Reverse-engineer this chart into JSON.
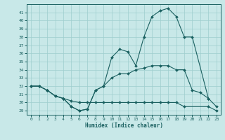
{
  "xlabel": "Humidex (Indice chaleur)",
  "bg_color": "#c8e8e8",
  "line_color": "#1a6060",
  "grid_color": "#9ecece",
  "xlim": [
    -0.5,
    23.5
  ],
  "ylim": [
    28.5,
    42.0
  ],
  "yticks": [
    29,
    30,
    31,
    32,
    33,
    34,
    35,
    36,
    37,
    38,
    39,
    40,
    41
  ],
  "xticks": [
    0,
    1,
    2,
    3,
    4,
    5,
    6,
    7,
    8,
    9,
    10,
    11,
    12,
    13,
    14,
    15,
    16,
    17,
    18,
    19,
    20,
    21,
    22,
    23
  ],
  "line_top_x": [
    0,
    1,
    2,
    3,
    4,
    5,
    6,
    7,
    8,
    9,
    10,
    11,
    12,
    13,
    14,
    15,
    16,
    17,
    18,
    19,
    20,
    22,
    23
  ],
  "line_top_y": [
    32,
    32,
    31.5,
    30.8,
    30.5,
    29.5,
    29.0,
    29.2,
    31.5,
    32.0,
    35.5,
    36.5,
    36.2,
    34.5,
    38.0,
    40.5,
    41.2,
    41.5,
    40.5,
    38.0,
    38.0,
    30.5,
    29.5
  ],
  "line_mid_x": [
    0,
    1,
    2,
    3,
    4,
    5,
    6,
    7,
    8,
    9,
    10,
    11,
    12,
    13,
    14,
    15,
    16,
    17,
    18,
    19,
    20,
    21,
    22
  ],
  "line_mid_y": [
    32,
    32,
    31.5,
    30.8,
    30.5,
    29.5,
    29.0,
    29.2,
    31.5,
    32.0,
    33.0,
    33.5,
    33.5,
    34.0,
    34.2,
    34.5,
    34.5,
    34.5,
    34.0,
    34.0,
    31.5,
    31.2,
    30.5
  ],
  "line_bot_x": [
    0,
    1,
    2,
    3,
    4,
    5,
    6,
    7,
    8,
    9,
    10,
    11,
    12,
    13,
    14,
    15,
    16,
    17,
    18,
    19,
    22,
    23
  ],
  "line_bot_y": [
    32,
    32,
    31.5,
    30.8,
    30.5,
    30.2,
    30.0,
    30.0,
    30.0,
    30.0,
    30.0,
    30.0,
    30.0,
    30.0,
    30.0,
    30.0,
    30.0,
    30.0,
    30.0,
    29.5,
    29.5,
    29.0
  ]
}
